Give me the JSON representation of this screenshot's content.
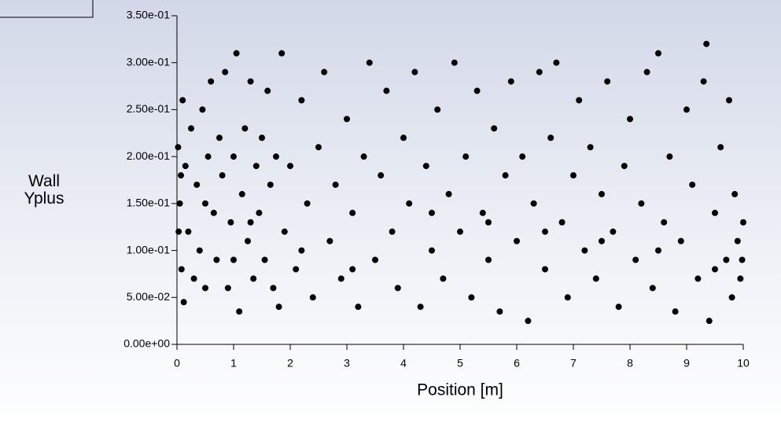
{
  "chart_data": {
    "type": "scatter",
    "ylabel": "Wall Yplus",
    "xlabel": "Position [m]",
    "color": "#000000",
    "xlim": [
      0,
      10
    ],
    "xticks": [
      0,
      1,
      2,
      3,
      4,
      5,
      6,
      7,
      8,
      9,
      10
    ],
    "ylim": [
      0,
      0.35
    ],
    "yticks": [
      {
        "value": 0,
        "label": "0.00e+00"
      },
      {
        "value": 0.05,
        "label": "5.00e-02"
      },
      {
        "value": 0.1,
        "label": "1.00e-01"
      },
      {
        "value": 0.15,
        "label": "1.50e-01"
      },
      {
        "value": 0.2,
        "label": "2.00e-01"
      },
      {
        "value": 0.25,
        "label": "2.50e-01"
      },
      {
        "value": 0.3,
        "label": "3.00e-01"
      },
      {
        "value": 0.35,
        "label": "3.50e-01"
      }
    ],
    "x": [
      0.02,
      0.05,
      0.08,
      0.1,
      0.12,
      0.15,
      0.2,
      0.25,
      0.3,
      0.35,
      0.4,
      0.45,
      0.5,
      0.55,
      0.6,
      0.65,
      0.7,
      0.75,
      0.8,
      0.85,
      0.9,
      0.95,
      1.0,
      1.05,
      1.1,
      1.15,
      1.2,
      1.25,
      1.3,
      1.35,
      1.4,
      1.45,
      1.5,
      1.55,
      1.6,
      1.65,
      1.7,
      1.75,
      1.8,
      1.85,
      1.9,
      2.0,
      2.1,
      2.2,
      2.3,
      2.4,
      2.5,
      2.6,
      2.7,
      2.8,
      2.9,
      3.0,
      3.1,
      3.2,
      3.3,
      3.4,
      3.5,
      3.6,
      3.7,
      3.8,
      3.9,
      4.0,
      4.1,
      4.2,
      4.3,
      4.4,
      4.5,
      4.6,
      4.7,
      4.8,
      4.9,
      5.0,
      5.1,
      5.2,
      5.3,
      5.4,
      5.5,
      5.6,
      5.7,
      5.8,
      5.9,
      6.0,
      6.1,
      6.2,
      6.3,
      6.4,
      6.5,
      6.6,
      6.7,
      6.8,
      6.9,
      7.0,
      7.1,
      7.2,
      7.3,
      7.4,
      7.5,
      7.6,
      7.7,
      7.8,
      7.9,
      8.0,
      8.1,
      8.2,
      8.3,
      8.4,
      8.5,
      8.6,
      8.7,
      8.8,
      8.9,
      9.0,
      9.1,
      9.2,
      9.3,
      9.35,
      9.4,
      9.5,
      9.6,
      9.7,
      9.75,
      9.8,
      9.85,
      9.9,
      9.95,
      10.0,
      9.98,
      0.03,
      0.07,
      0.5,
      1.3,
      2.2,
      3.1,
      4.5,
      5.5,
      6.5,
      7.5,
      8.5,
      9.5,
      1.0
    ],
    "values": [
      0.21,
      0.15,
      0.08,
      0.26,
      0.045,
      0.19,
      0.12,
      0.23,
      0.07,
      0.17,
      0.1,
      0.25,
      0.06,
      0.2,
      0.28,
      0.14,
      0.09,
      0.22,
      0.18,
      0.29,
      0.06,
      0.13,
      0.2,
      0.31,
      0.035,
      0.16,
      0.23,
      0.11,
      0.28,
      0.07,
      0.19,
      0.14,
      0.22,
      0.09,
      0.27,
      0.17,
      0.06,
      0.2,
      0.04,
      0.31,
      0.12,
      0.19,
      0.08,
      0.26,
      0.15,
      0.05,
      0.21,
      0.29,
      0.11,
      0.17,
      0.07,
      0.24,
      0.14,
      0.04,
      0.2,
      0.3,
      0.09,
      0.18,
      0.27,
      0.12,
      0.06,
      0.22,
      0.15,
      0.29,
      0.04,
      0.19,
      0.1,
      0.25,
      0.07,
      0.16,
      0.3,
      0.12,
      0.2,
      0.05,
      0.27,
      0.14,
      0.09,
      0.23,
      0.035,
      0.18,
      0.28,
      0.11,
      0.2,
      0.025,
      0.15,
      0.29,
      0.08,
      0.22,
      0.3,
      0.13,
      0.05,
      0.18,
      0.26,
      0.1,
      0.21,
      0.07,
      0.16,
      0.28,
      0.12,
      0.04,
      0.19,
      0.24,
      0.09,
      0.15,
      0.29,
      0.06,
      0.31,
      0.13,
      0.2,
      0.035,
      0.11,
      0.25,
      0.17,
      0.07,
      0.28,
      0.32,
      0.025,
      0.14,
      0.21,
      0.09,
      0.26,
      0.05,
      0.16,
      0.11,
      0.07,
      0.13,
      0.09,
      0.12,
      0.18,
      0.15,
      0.13,
      0.1,
      0.08,
      0.14,
      0.13,
      0.12,
      0.11,
      0.1,
      0.08,
      0.09
    ]
  }
}
